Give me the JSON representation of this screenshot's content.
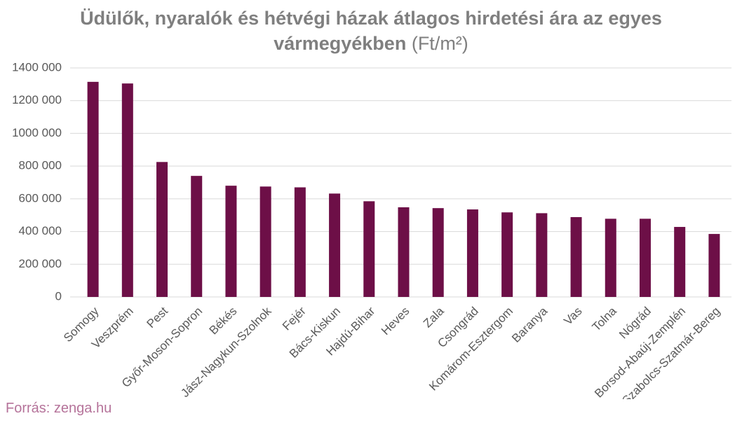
{
  "chart_data": {
    "type": "bar",
    "title": "Üdülők, nyaralók és hétvégi házak átlagos hirdetési ára az egyes vármegyékben",
    "unit": "(Ft/m²)",
    "source": "Forrás: zenga.hu",
    "categories": [
      "Somogy",
      "Veszprém",
      "Pest",
      "Győr-Moson-Sopron",
      "Békés",
      "Jász-Nagykun-Szolnok",
      "Fejér",
      "Bács-Kiskun",
      "Hajdú-Bihar",
      "Heves",
      "Zala",
      "Csongrád",
      "Komárom-Esztergom",
      "Baranya",
      "Vas",
      "Tolna",
      "Nógrád",
      "Borsod-Abaúj-Zemplén",
      "Szabolcs-Szatmár-Bereg"
    ],
    "values": [
      1315000,
      1305000,
      825000,
      740000,
      680000,
      675000,
      670000,
      632000,
      585000,
      548000,
      543000,
      535000,
      517000,
      512000,
      488000,
      478000,
      478000,
      428000,
      385000
    ],
    "color": "#6d0f47",
    "ylim": [
      0,
      1400000
    ],
    "yticks": [
      0,
      {
        "value": 200000,
        "label": "200 000"
      },
      {
        "value": 400000,
        "label": "400 000"
      },
      {
        "value": 600000,
        "label": "600 000"
      },
      {
        "value": 800000,
        "label": "800 000"
      },
      {
        "value": 1000000,
        "label": "1000 000"
      },
      {
        "value": 1200000,
        "label": "1200 000"
      },
      {
        "value": 1400000,
        "label": "1400 000"
      }
    ],
    "grid": true
  }
}
